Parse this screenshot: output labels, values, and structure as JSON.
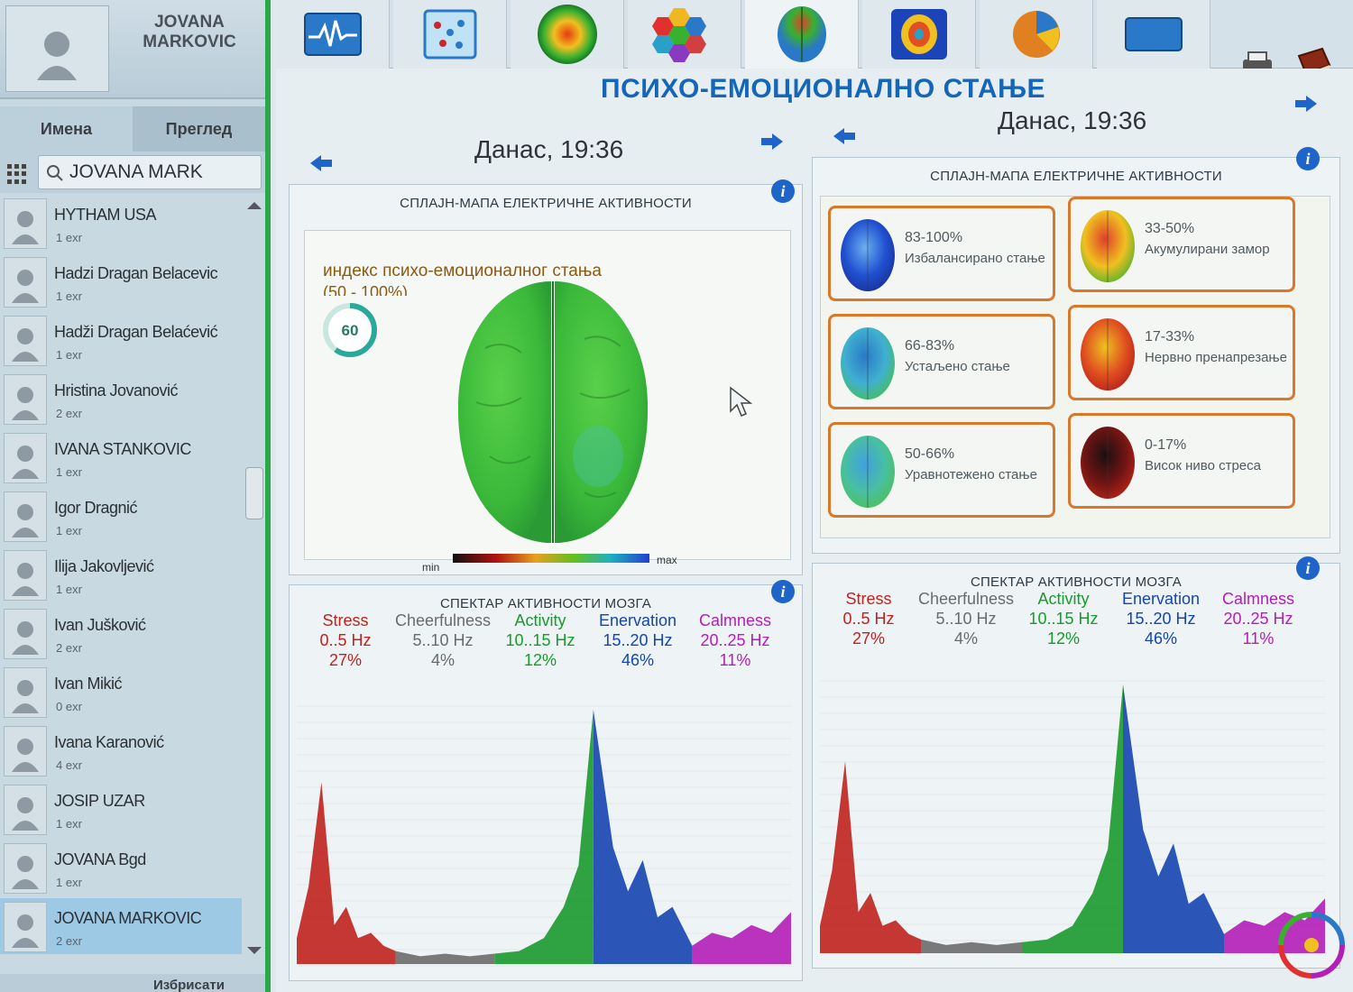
{
  "user": {
    "name": "JOVANA MARKOVIC"
  },
  "sidebar": {
    "tabs": [
      "Имена",
      "Преглед"
    ],
    "search_value": "JOVANA MARK",
    "contacts": [
      {
        "name": "HYTHAM USA",
        "sub": "1 exr"
      },
      {
        "name": "Hadzi Dragan Belacevic",
        "sub": "1 exr"
      },
      {
        "name": "Hadži Dragan Belaćević",
        "sub": "1 exr"
      },
      {
        "name": "Hristina Jovanović",
        "sub": "2 exr"
      },
      {
        "name": "IVANA STANKOVIC",
        "sub": "1 exr"
      },
      {
        "name": "Igor Dragnić",
        "sub": "1 exr"
      },
      {
        "name": "Ilija Jakovljević",
        "sub": "1 exr"
      },
      {
        "name": "Ivan Jušković",
        "sub": "2 exr"
      },
      {
        "name": "Ivan Mikić",
        "sub": "0 exr"
      },
      {
        "name": "Ivana Karanović",
        "sub": "4 exr"
      },
      {
        "name": "JOSIP UZAR",
        "sub": "1 exr"
      },
      {
        "name": "JOVANA Bgd",
        "sub": "1 exr"
      },
      {
        "name": "JOVANA MARKOVIC",
        "sub": "2 exr"
      }
    ],
    "selected_index": 12,
    "footer": "Избрисати"
  },
  "toolbar": {
    "tools": [
      "ecg-icon",
      "data-grid-icon",
      "heat-circle-icon",
      "hexagon-icon",
      "brain-icon",
      "face-map-icon",
      "pie-icon",
      "window-icon"
    ],
    "active_index": 4
  },
  "main": {
    "title": "ПСИХО-ЕМОЦИОНАЛНО СТАЊЕ",
    "left": {
      "date": "Данас, 19:36",
      "map_title": "СПЛАЈН-МАПА ЕЛЕКТРИЧНЕ АКТИВНОСТИ",
      "index_label": "индекс психо-емоционалног стања",
      "index_range": "(50 - 100%)",
      "index_value": "60",
      "index_fraction": 0.6,
      "scale_min": "min",
      "scale_max": "max",
      "spectrum_title": "СПЕКТАР АКТИВНОСТИ МОЗГА",
      "bands": [
        {
          "name": "Stress",
          "freq": "0..5 Hz",
          "pct": "27%",
          "color": "#c0221e"
        },
        {
          "name": "Cheerfulness",
          "freq": "5..10 Hz",
          "pct": "4%",
          "color": "#6b6b6b"
        },
        {
          "name": "Activity",
          "freq": "10..15 Hz",
          "pct": "12%",
          "color": "#1a9a2e"
        },
        {
          "name": "Enervation",
          "freq": "15..20 Hz",
          "pct": "46%",
          "color": "#1545b0"
        },
        {
          "name": "Calmness",
          "freq": "20..25 Hz",
          "pct": "11%",
          "color": "#b21eb8"
        }
      ]
    },
    "right": {
      "date": "Данас, 19:36",
      "map_title": "СПЛАЈН-МАПА ЕЛЕКТРИЧНЕ АКТИВНОСТИ",
      "states": [
        {
          "range": "83-100%",
          "label": "Избалансирано стање",
          "palette": "blue"
        },
        {
          "range": "33-50%",
          "label": "Акумулирани замор",
          "palette": "green-red"
        },
        {
          "range": "66-83%",
          "label": "Устаљено стање",
          "palette": "blue-green"
        },
        {
          "range": "17-33%",
          "label": "Нервно пренапрезање",
          "palette": "red"
        },
        {
          "range": "50-66%",
          "label": "Уравнотежено стање",
          "palette": "teal"
        },
        {
          "range": "0-17%",
          "label": "Висок ниво стреса",
          "palette": "dark"
        }
      ],
      "spectrum_title": "СПЕКТАР АКТИВНОСТИ МОЗГА",
      "bands": [
        {
          "name": "Stress",
          "freq": "0..5 Hz",
          "pct": "27%",
          "color": "#c0221e"
        },
        {
          "name": "Cheerfulness",
          "freq": "5..10 Hz",
          "pct": "4%",
          "color": "#6b6b6b"
        },
        {
          "name": "Activity",
          "freq": "10..15 Hz",
          "pct": "12%",
          "color": "#1a9a2e"
        },
        {
          "name": "Enervation",
          "freq": "15..20 Hz",
          "pct": "46%",
          "color": "#1545b0"
        },
        {
          "name": "Calmness",
          "freq": "20..25 Hz",
          "pct": "11%",
          "color": "#b21eb8"
        }
      ]
    }
  },
  "colors": {
    "accent": "#1565b8",
    "sidebar_border": "#2aa84a",
    "card_border": "#d8782a",
    "info": "#1f64c8"
  }
}
